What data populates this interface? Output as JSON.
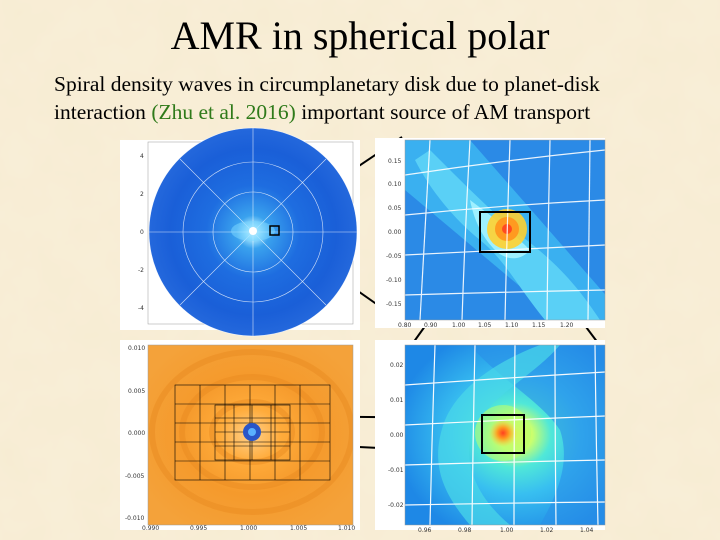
{
  "slide": {
    "title": "AMR in spherical polar",
    "subtitle_before": "Spiral density waves in circumplanetary disk due to planet-disk interaction ",
    "citation": "(Zhu et al. 2016)",
    "subtitle_after": " important source of AM transport",
    "citation_color": "#2f7a1a",
    "background_color": "#f7ecd2"
  },
  "panels": {
    "top_left": {
      "y_ticks": [
        "4",
        "2",
        "0",
        "-2",
        "-4"
      ]
    },
    "top_right": {
      "y_ticks": [
        "0.15",
        "0.10",
        "0.05",
        "0.00",
        "-0.05",
        "-0.10",
        "-0.15"
      ],
      "x_ticks": [
        "0.80",
        "0.90",
        "1.00",
        "1.05",
        "1.10",
        "1.15",
        "1.20"
      ]
    },
    "bottom_left": {
      "y_ticks": [
        "0.010",
        "0.005",
        "0.000",
        "-0.005",
        "-0.010"
      ],
      "x_ticks": [
        "0.990",
        "0.995",
        "1.000",
        "1.005",
        "1.010"
      ]
    },
    "bottom_right": {
      "y_ticks": [
        "0.02",
        "0.01",
        "0.00",
        "-0.01",
        "-0.02"
      ],
      "x_ticks": [
        "0.96",
        "0.98",
        "1.00",
        "1.02",
        "1.04"
      ]
    }
  }
}
